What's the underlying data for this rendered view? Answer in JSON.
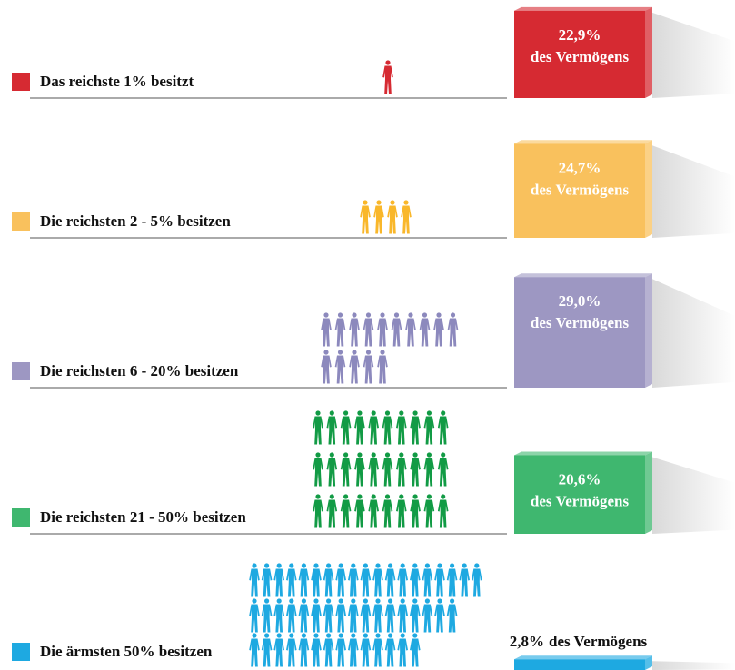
{
  "chart_data": {
    "type": "bar",
    "categories": [
      "Das reichste 1% besitzt",
      "Die reichsten 2 - 5% besitzen",
      "Die reichsten 6 - 20% besitzen",
      "Die reichsten 21 - 50% besitzen",
      "Die ärmsten 50% besitzen"
    ],
    "values": [
      22.9,
      24.7,
      29.0,
      20.6,
      2.8
    ],
    "value_labels": [
      "22,9%",
      "24,7%",
      "29,0%",
      "20,6%",
      "2,8%"
    ],
    "value_suffix": "des Vermögens",
    "people": [
      1,
      4,
      15,
      30,
      50
    ],
    "colors": [
      "#d62a32",
      "#f9c15d",
      "#9d97c2",
      "#3fb76f",
      "#1ea9e1"
    ],
    "icon_colors": [
      "#d62a32",
      "#f9b72a",
      "#8c89bd",
      "#129b45",
      "#1ea9e1"
    ]
  }
}
